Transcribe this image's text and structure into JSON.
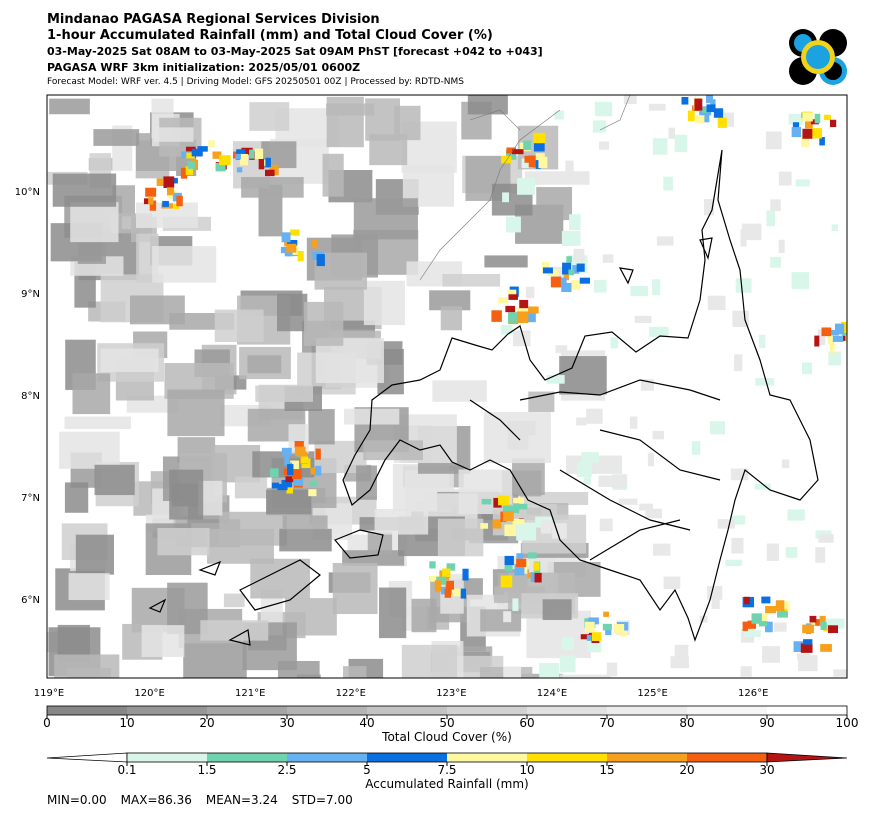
{
  "header": {
    "lines": [
      "Mindanao PAGASA Regional Services Division",
      "1-hour Accumulated Rainfall (mm) and Total Cloud Cover (%)",
      "03-May-2025 Sat 08AM to 03-May-2025 Sat 09AM PhST [forecast +042 to +043]",
      "PAGASA WRF 3km initialization: 2025/05/01 0600Z",
      "Forecast Model: WRF ver. 4.5 | Driving Model: GFS 20250501 00Z | Processed by: RDTD-NMS"
    ]
  },
  "map": {
    "lat_labels": [
      "10°N",
      "9°N",
      "8°N",
      "7°N",
      "6°N"
    ],
    "lon_labels": [
      "119°E",
      "120°E",
      "121°E",
      "122°E",
      "123°E",
      "124°E",
      "125°E",
      "126°E"
    ]
  },
  "cloud_bar": {
    "label": "Total Cloud Cover (%)",
    "ticks": [
      0,
      10,
      20,
      30,
      40,
      50,
      60,
      70,
      80,
      90,
      100
    ],
    "colors": [
      "#878787",
      "#969696",
      "#a5a5a5",
      "#b4b4b4",
      "#c3c3c3",
      "#d2d2d2",
      "#e1e1e1",
      "#ececec",
      "#f6f6f6",
      "#ffffff"
    ]
  },
  "rain_bar": {
    "label": "Accumulated Rainfall (mm)",
    "ticks": [
      0.1,
      1.5,
      2.5,
      5,
      7.5,
      10,
      15,
      20,
      30
    ],
    "colors": [
      "#ffffff",
      "#d9f6ea",
      "#6fd3b0",
      "#66b1f2",
      "#0a6fe0",
      "#fff8a0",
      "#ffe000",
      "#f6a01e",
      "#f46010",
      "#b41414"
    ]
  },
  "stats": [
    "MIN=0.00",
    "MAX=86.36",
    "MEAN=3.24",
    "STD=7.00"
  ]
}
